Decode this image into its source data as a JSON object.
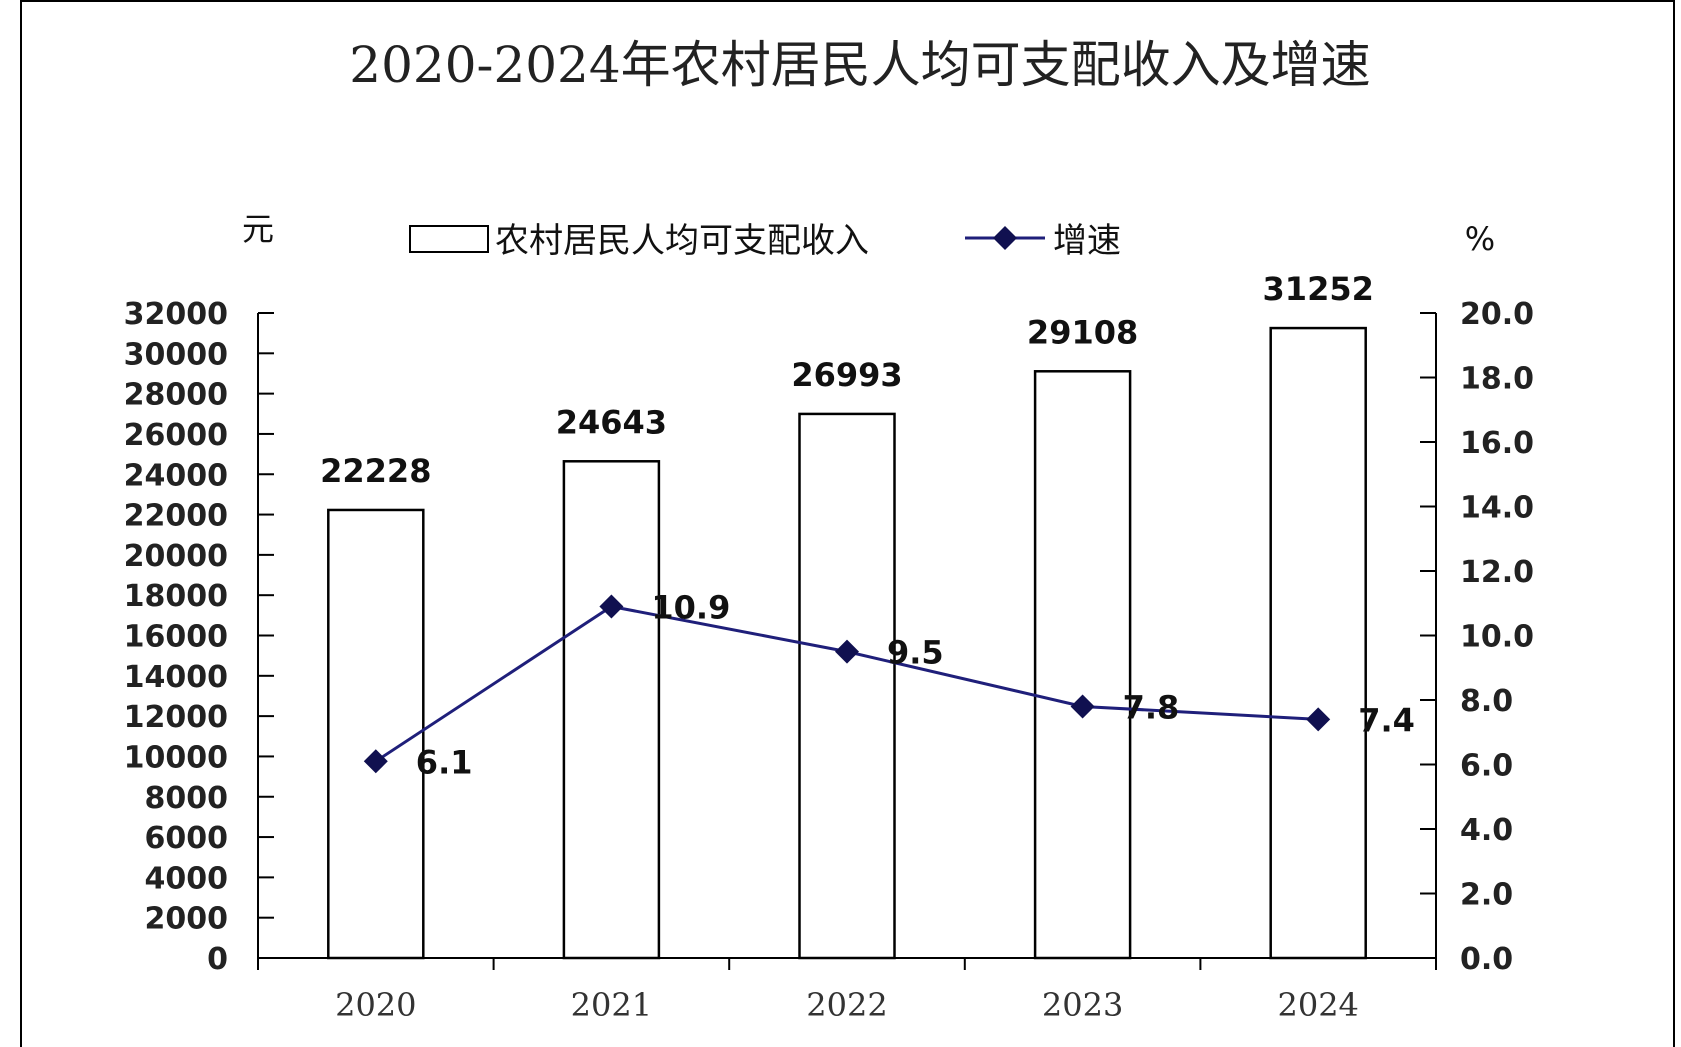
{
  "chart_data": {
    "type": "bar",
    "title": "2020-2024年农村居民人均可支配收入及增速",
    "categories": [
      "2020",
      "2021",
      "2022",
      "2023",
      "2024"
    ],
    "series": [
      {
        "name": "农村居民人均可支配收入",
        "type": "bar",
        "axis": "left",
        "values": [
          22228,
          24643,
          26993,
          29108,
          31252
        ]
      },
      {
        "name": "增速",
        "type": "line",
        "axis": "right",
        "values": [
          6.1,
          10.9,
          9.5,
          7.8,
          7.4
        ]
      }
    ],
    "y_left": {
      "unit": "元",
      "range": [
        0,
        32000
      ],
      "step": 2000,
      "ticks": [
        "0",
        "2000",
        "4000",
        "6000",
        "8000",
        "10000",
        "12000",
        "14000",
        "16000",
        "18000",
        "20000",
        "22000",
        "24000",
        "26000",
        "28000",
        "30000",
        "32000"
      ]
    },
    "y_right": {
      "unit": "%",
      "range": [
        0,
        20
      ],
      "step": 2,
      "ticks": [
        "0.0",
        "2.0",
        "4.0",
        "6.0",
        "8.0",
        "10.0",
        "12.0",
        "14.0",
        "16.0",
        "18.0",
        "20.0"
      ]
    },
    "bar_labels": [
      "22228",
      "24643",
      "26993",
      "29108",
      "31252"
    ],
    "line_labels": [
      "6.1",
      "10.9",
      "9.5",
      "7.8",
      "7.4"
    ],
    "legend_position": "top",
    "grid": false,
    "colors": {
      "bar_fill": "#ffffff",
      "bar_stroke": "#000000",
      "line": "#1f1f7a",
      "marker": "#101050"
    }
  }
}
